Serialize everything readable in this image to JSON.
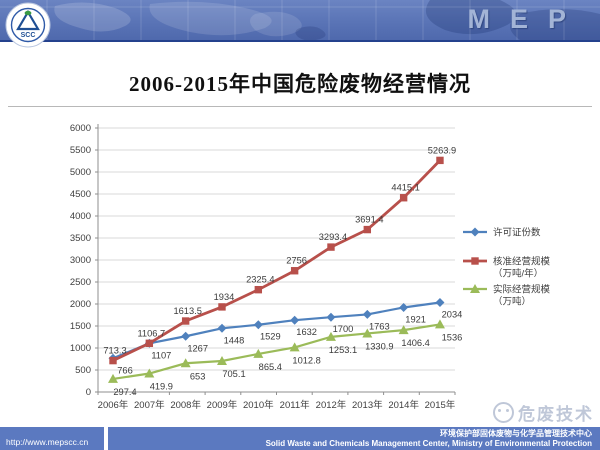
{
  "header": {
    "brand": "MEP",
    "logo_text": "SCC"
  },
  "slide": {
    "title": "2006-2015年中国危险废物经营情况"
  },
  "watermark": {
    "text": "危废技术"
  },
  "footer": {
    "url": "http://www.mepscc.cn",
    "org_cn": "环境保护部固体废物与化学品管理技术中心",
    "org_en": "Solid Waste and Chemicals Management Center, Ministry of Environmental Protection"
  },
  "chart_data": {
    "type": "line",
    "title": "",
    "xlabel": "",
    "ylabel": "",
    "categories": [
      "2006年",
      "2007年",
      "2008年",
      "2009年",
      "2010年",
      "2011年",
      "2012年",
      "2013年",
      "2014年",
      "2015年"
    ],
    "series": [
      {
        "name": "许可证份数",
        "name2": "",
        "color": "#4f81bd",
        "marker": "diamond",
        "values": [
          766,
          1107,
          1267,
          1448,
          1529,
          1632,
          1700,
          1763,
          1921,
          2034
        ]
      },
      {
        "name": "核准经营规模",
        "name2": "（万吨/年）",
        "color": "#b8504b",
        "marker": "square",
        "values": [
          713.3,
          1106.7,
          1613.5,
          1934,
          2325.4,
          2756,
          3293.4,
          3691.4,
          4415.1,
          5263.9
        ]
      },
      {
        "name": "实际经营规模",
        "name2": "（万吨）",
        "color": "#9bbb59",
        "marker": "triangle",
        "values": [
          297.4,
          419.9,
          653,
          705.1,
          865.4,
          1012.8,
          1253.1,
          1330.9,
          1406.4,
          1536
        ]
      }
    ],
    "ylim": [
      0,
      6000
    ],
    "y_ticks": [
      0,
      500,
      1000,
      1500,
      2000,
      2500,
      3000,
      3500,
      4000,
      4500,
      5000,
      5500,
      6000
    ],
    "grid": true,
    "legend_position": "right"
  }
}
